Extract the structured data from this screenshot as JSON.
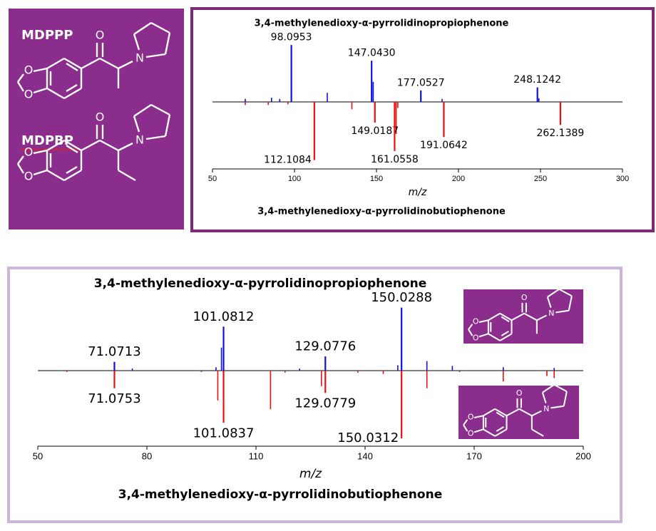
{
  "compound_names": [
    "MDPPP",
    "MDPBP"
  ],
  "atom_labels": {
    "oxygen": "O",
    "nitrogen": "N"
  },
  "chart_data": [
    {
      "type": "bar",
      "xlabel": "m/z",
      "xlim": [
        50,
        300
      ],
      "xticks": [
        50,
        100,
        150,
        200,
        250,
        300
      ],
      "ylim": [
        -100,
        100
      ],
      "series": [
        {
          "name": "3,4-methylenedioxy-α-pyrrolidinopropiophenone",
          "color": "#1010e0",
          "x": [
            98.0953,
            {
              "value": 147.043,
              "label": "147.0430"
            },
            177.0527,
            248.1242
          ],
          "values": [
            94,
            68,
            19,
            24
          ],
          "minor_x": [
            70,
            86,
            91,
            120,
            148,
            190,
            249
          ],
          "minor_values": [
            5,
            7,
            5,
            15,
            33,
            5,
            6
          ]
        },
        {
          "name": "3,4-methylenedioxy-α-pyrrolidinobutiophenone",
          "color": "#e81010",
          "x": [
            112.1084,
            149.0187,
            161.0558,
            191.0642,
            262.1389
          ],
          "values": [
            -96,
            -34,
            -81,
            -58,
            -38
          ],
          "minor_x": [
            70,
            84,
            96,
            135,
            162,
            163
          ],
          "minor_values": [
            -5,
            -5,
            -4,
            -12,
            -53,
            -10
          ]
        }
      ]
    },
    {
      "type": "bar",
      "xlabel": "m/z",
      "xlim": [
        50,
        200
      ],
      "xticks": [
        50,
        80,
        110,
        140,
        170,
        200
      ],
      "ylim": [
        -100,
        100
      ],
      "series": [
        {
          "name": "3,4-methylenedioxy-α-pyrrolidinopropiophenone",
          "color": "#1010e0",
          "x": [
            71.0713,
            101.0812,
            129.0776,
            150.0288
          ],
          "values": [
            13,
            65,
            21,
            93
          ],
          "minor_x": [
            76,
            99,
            100.5,
            122,
            149,
            157,
            164,
            178,
            192
          ],
          "minor_values": [
            3,
            5,
            34,
            3,
            8,
            14,
            7,
            5,
            4
          ]
        },
        {
          "name": "3,4-methylenedioxy-α-pyrrolidinobutiophenone",
          "color": "#e81010",
          "x": [
            71.0753,
            101.0837,
            129.0779,
            150.0312
          ],
          "values": [
            -26,
            -77,
            -33,
            -100
          ],
          "minor_x": [
            58,
            95,
            99.5,
            114,
            118,
            128,
            138,
            145,
            157,
            166,
            178,
            190,
            192
          ],
          "minor_values": [
            -2,
            -2,
            -44,
            -57,
            -3,
            -23,
            -3,
            -5,
            -26,
            -2,
            -16,
            -8,
            -11
          ]
        }
      ]
    }
  ]
}
